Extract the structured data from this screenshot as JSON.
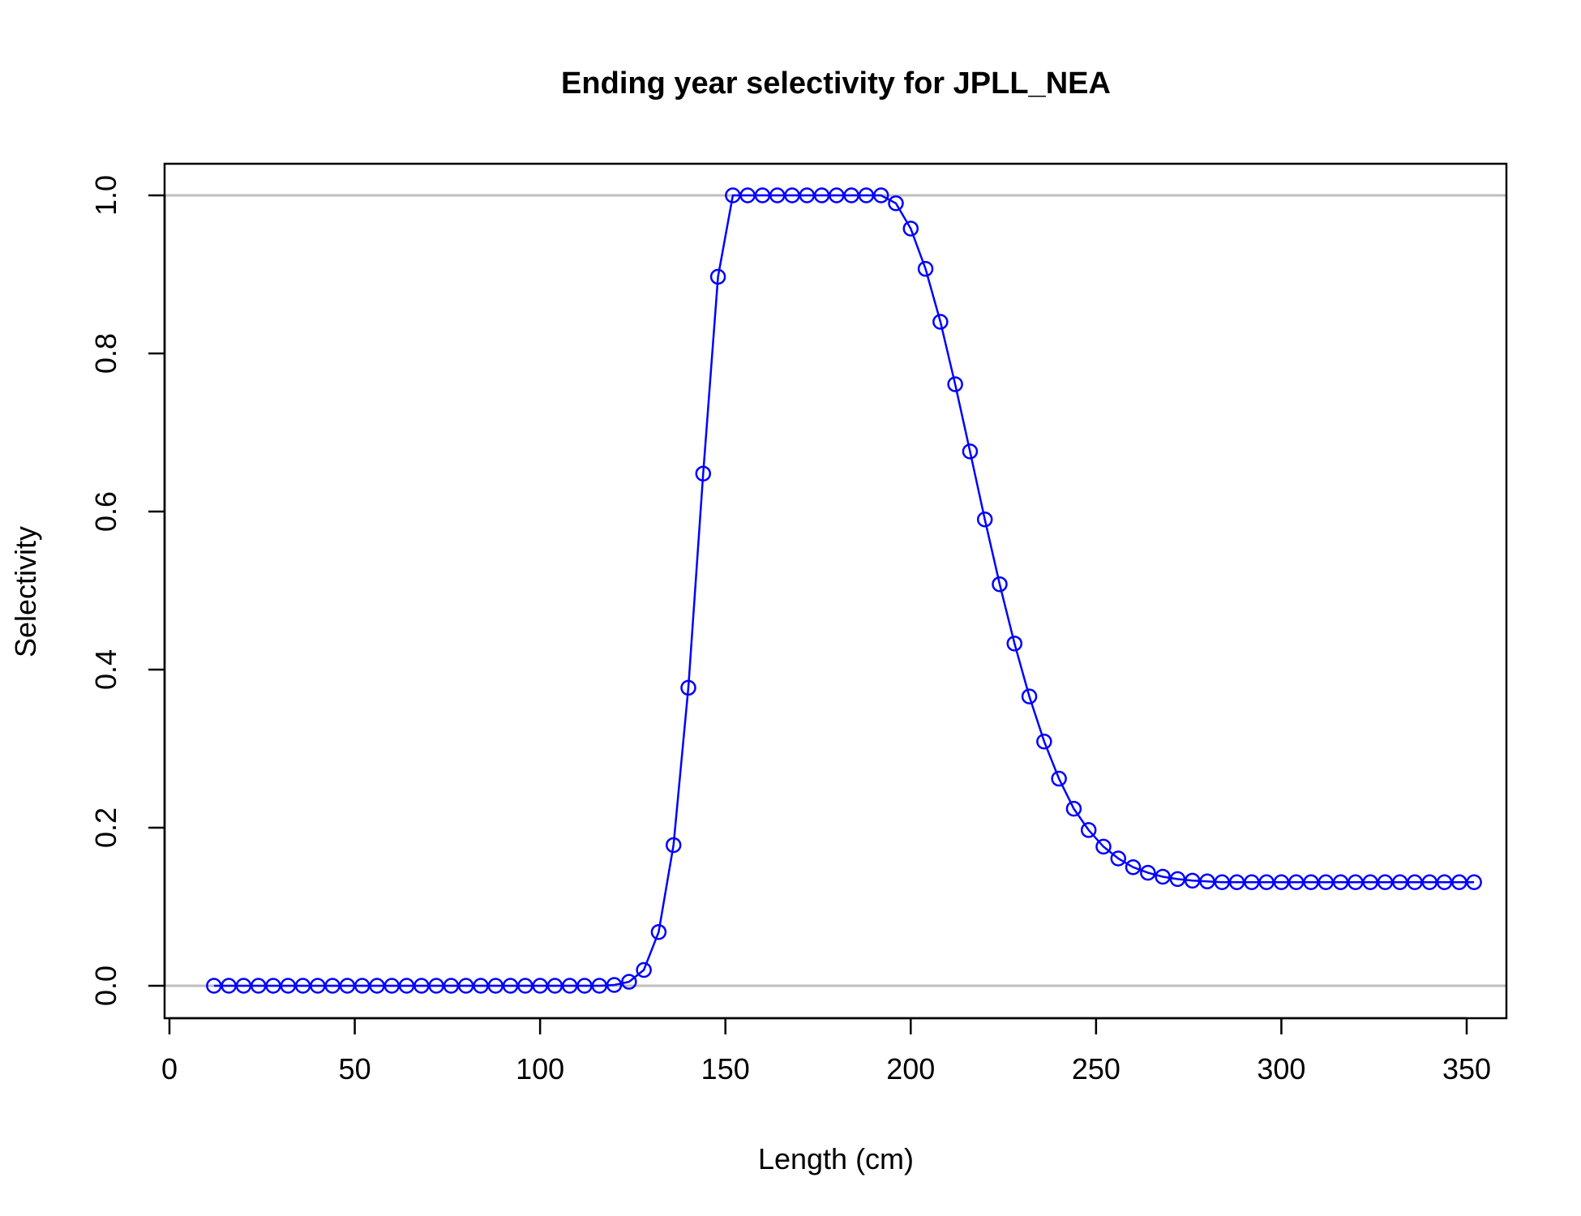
{
  "chart_data": {
    "type": "line",
    "title": "Ending year selectivity for JPLL_NEA",
    "xlabel": "Length (cm)",
    "ylabel": "Selectivity",
    "xlim": [
      0,
      350
    ],
    "ylim": [
      0.0,
      1.0
    ],
    "xticks": [
      "0",
      "50",
      "100",
      "150",
      "200",
      "250",
      "300",
      "350"
    ],
    "yticks": [
      "0.0",
      "0.2",
      "0.4",
      "0.6",
      "0.8",
      "1.0"
    ],
    "reference_lines": [
      0.0,
      1.0
    ],
    "grid": false,
    "series_color": "#0000ff",
    "reference_line_color": "#bebebe",
    "marker": "open-circle",
    "series": [
      {
        "x": [
          12,
          16,
          20,
          24,
          28,
          32,
          36,
          40,
          44,
          48,
          52,
          56,
          60,
          64,
          68,
          72,
          76,
          80,
          84,
          88,
          92,
          96,
          100,
          104,
          108,
          112,
          116,
          120,
          124,
          128,
          132,
          136,
          140,
          144,
          148,
          152,
          156,
          160,
          164,
          168,
          172,
          176,
          180,
          184,
          188,
          192,
          196,
          200,
          204,
          208,
          212,
          216,
          220,
          224,
          228,
          232,
          236,
          240,
          244,
          248,
          252,
          256,
          260,
          264,
          268,
          272,
          276,
          280,
          284,
          288,
          292,
          296,
          300,
          304,
          308,
          312,
          316,
          320,
          324,
          328,
          332,
          336,
          340,
          344,
          348,
          352
        ],
        "y": [
          0,
          0,
          0,
          0,
          0,
          0,
          0,
          0,
          0,
          0,
          0,
          0,
          0,
          0,
          0,
          0,
          0,
          0,
          0,
          0,
          0,
          0,
          0,
          0,
          0,
          0,
          0,
          0.001,
          0.005,
          0.02,
          0.068,
          0.178,
          0.377,
          0.648,
          0.897,
          1.0,
          1.0,
          1.0,
          1.0,
          1.0,
          1.0,
          1.0,
          1.0,
          1.0,
          1.0,
          1.0,
          0.99,
          0.958,
          0.907,
          0.84,
          0.761,
          0.676,
          0.59,
          0.508,
          0.433,
          0.366,
          0.309,
          0.262,
          0.224,
          0.197,
          0.176,
          0.161,
          0.15,
          0.143,
          0.138,
          0.135,
          0.133,
          0.132,
          0.131,
          0.131,
          0.131,
          0.131,
          0.131,
          0.131,
          0.131,
          0.131,
          0.131,
          0.131,
          0.131,
          0.131,
          0.131,
          0.131,
          0.131,
          0.131,
          0.131,
          0.131
        ]
      }
    ]
  }
}
